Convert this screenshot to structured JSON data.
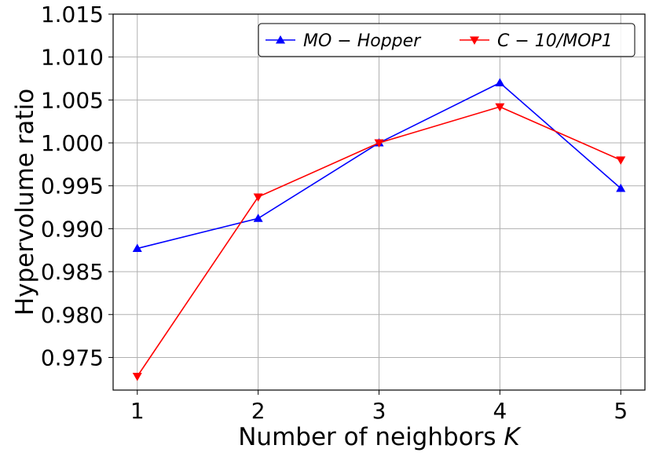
{
  "chart_data": {
    "type": "line",
    "xlabel": "Number of neighbors",
    "xlabel_var": "K",
    "ylabel": "Hypervolume ratio",
    "x": [
      1,
      2,
      3,
      4,
      5
    ],
    "xlim": [
      0.8,
      5.2
    ],
    "ylim": [
      0.9712,
      1.015
    ],
    "xticks": [
      1,
      2,
      3,
      4,
      5
    ],
    "yticks": [
      0.975,
      0.98,
      0.985,
      0.99,
      0.995,
      1.0,
      1.005,
      1.01,
      1.015
    ],
    "ytick_labels": [
      "0.975",
      "0.980",
      "0.985",
      "0.990",
      "0.995",
      "1.000",
      "1.005",
      "1.010",
      "1.015"
    ],
    "grid": true,
    "legend_position": "top-right",
    "series": [
      {
        "name": "MO − Hopper",
        "values": [
          0.9877,
          0.9912,
          1.0,
          1.007,
          0.9947
        ],
        "color": "#0000ff",
        "marker": "triangle-up"
      },
      {
        "name": "C − 10/MOP1",
        "values": [
          0.9728,
          0.9937,
          1.0,
          1.0042,
          0.998
        ],
        "color": "#ff0000",
        "marker": "triangle-down"
      }
    ]
  }
}
